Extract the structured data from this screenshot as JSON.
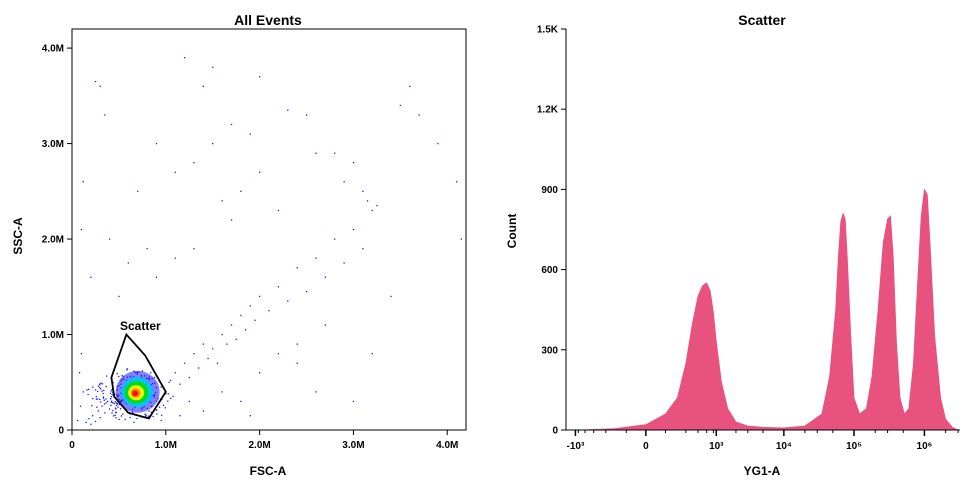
{
  "chart_data": [
    {
      "type": "scatter",
      "title": "All Events",
      "xlabel": "FSC-A",
      "ylabel": "SSC-A",
      "xlim": [
        0,
        4200000
      ],
      "ylim": [
        0,
        4200000
      ],
      "x_ticks": [
        {
          "value": 0,
          "label": "0"
        },
        {
          "value": 1000000,
          "label": "1.0M"
        },
        {
          "value": 2000000,
          "label": "2.0M"
        },
        {
          "value": 3000000,
          "label": "3.0M"
        },
        {
          "value": 4000000,
          "label": "4.0M"
        }
      ],
      "y_ticks": [
        {
          "value": 0,
          "label": "0"
        },
        {
          "value": 1000000,
          "label": "1.0M"
        },
        {
          "value": 2000000,
          "label": "2.0M"
        },
        {
          "value": 3000000,
          "label": "3.0M"
        },
        {
          "value": 4000000,
          "label": "4.0M"
        }
      ],
      "point_color": "#1a1aff",
      "density_center": [
        700000,
        400000
      ],
      "density_colors": [
        "#1a1aff",
        "#00c8ff",
        "#00e000",
        "#ffff00",
        "#ff8000",
        "#ff0000"
      ],
      "points": [
        [
          150000,
          80000
        ],
        [
          180000,
          120000
        ],
        [
          200000,
          60000
        ],
        [
          220000,
          150000
        ],
        [
          250000,
          90000
        ],
        [
          280000,
          200000
        ],
        [
          300000,
          130000
        ],
        [
          320000,
          250000
        ],
        [
          350000,
          180000
        ],
        [
          380000,
          300000
        ],
        [
          400000,
          220000
        ],
        [
          420000,
          350000
        ],
        [
          450000,
          280000
        ],
        [
          480000,
          420000
        ],
        [
          500000,
          320000
        ],
        [
          520000,
          480000
        ],
        [
          550000,
          380000
        ],
        [
          580000,
          520000
        ],
        [
          600000,
          300000
        ],
        [
          620000,
          560000
        ],
        [
          650000,
          450000
        ],
        [
          680000,
          600000
        ],
        [
          700000,
          250000
        ],
        [
          720000,
          500000
        ],
        [
          750000,
          620000
        ],
        [
          780000,
          350000
        ],
        [
          800000,
          480000
        ],
        [
          820000,
          200000
        ],
        [
          850000,
          420000
        ],
        [
          880000,
          550000
        ],
        [
          900000,
          300000
        ],
        [
          950000,
          450000
        ],
        [
          1000000,
          380000
        ],
        [
          1050000,
          520000
        ],
        [
          1100000,
          600000
        ],
        [
          1150000,
          480000
        ],
        [
          1200000,
          700000
        ],
        [
          1250000,
          550000
        ],
        [
          1300000,
          800000
        ],
        [
          1350000,
          650000
        ],
        [
          1400000,
          900000
        ],
        [
          1450000,
          750000
        ],
        [
          1500000,
          850000
        ],
        [
          1550000,
          700000
        ],
        [
          1600000,
          1000000
        ],
        [
          1650000,
          900000
        ],
        [
          1700000,
          1100000
        ],
        [
          1750000,
          950000
        ],
        [
          1800000,
          1200000
        ],
        [
          1850000,
          1050000
        ],
        [
          1900000,
          1300000
        ],
        [
          1950000,
          1150000
        ],
        [
          2000000,
          1400000
        ],
        [
          2100000,
          1250000
        ],
        [
          2200000,
          1500000
        ],
        [
          2300000,
          1350000
        ],
        [
          2400000,
          1700000
        ],
        [
          2500000,
          1450000
        ],
        [
          2600000,
          1800000
        ],
        [
          2700000,
          1600000
        ],
        [
          2800000,
          2000000
        ],
        [
          2900000,
          1750000
        ],
        [
          3000000,
          2100000
        ],
        [
          3100000,
          1900000
        ],
        [
          3200000,
          2300000
        ],
        [
          300000,
          3600000
        ],
        [
          250000,
          3650000
        ],
        [
          350000,
          3300000
        ],
        [
          1200000,
          3900000
        ],
        [
          1500000,
          3800000
        ],
        [
          2000000,
          3700000
        ],
        [
          1400000,
          3600000
        ],
        [
          2500000,
          3300000
        ],
        [
          2300000,
          3350000
        ],
        [
          3700000,
          3300000
        ],
        [
          3600000,
          3600000
        ],
        [
          2600000,
          2900000
        ],
        [
          2000000,
          2700000
        ],
        [
          1800000,
          2500000
        ],
        [
          2200000,
          2300000
        ],
        [
          3150000,
          2400000
        ],
        [
          3250000,
          2350000
        ],
        [
          3900000,
          3000000
        ],
        [
          4100000,
          2600000
        ],
        [
          4150000,
          2000000
        ],
        [
          800000,
          1900000
        ],
        [
          600000,
          1750000
        ],
        [
          400000,
          2000000
        ],
        [
          100000,
          2100000
        ],
        [
          120000,
          2600000
        ],
        [
          200000,
          1600000
        ],
        [
          500000,
          1400000
        ],
        [
          900000,
          1600000
        ],
        [
          1100000,
          1800000
        ],
        [
          1300000,
          1900000
        ],
        [
          1600000,
          2400000
        ],
        [
          1700000,
          2200000
        ],
        [
          2800000,
          2900000
        ],
        [
          3000000,
          2800000
        ],
        [
          3400000,
          1400000
        ],
        [
          2700000,
          1100000
        ],
        [
          2400000,
          900000
        ],
        [
          2200000,
          800000
        ],
        [
          2000000,
          600000
        ],
        [
          1800000,
          300000
        ],
        [
          1600000,
          400000
        ],
        [
          1400000,
          200000
        ],
        [
          1250000,
          300000
        ],
        [
          1150000,
          150000
        ],
        [
          950000,
          100000
        ],
        [
          1900000,
          150000
        ],
        [
          2400000,
          700000
        ],
        [
          2600000,
          400000
        ],
        [
          3000000,
          300000
        ],
        [
          3200000,
          800000
        ],
        [
          100000,
          800000
        ],
        [
          80000,
          600000
        ],
        [
          120000,
          400000
        ],
        [
          90000,
          250000
        ],
        [
          60000,
          100000
        ],
        [
          2900000,
          2600000
        ],
        [
          3100000,
          2500000
        ],
        [
          3500000,
          3400000
        ],
        [
          1500000,
          3000000
        ],
        [
          1900000,
          3100000
        ],
        [
          1300000,
          2800000
        ],
        [
          1100000,
          2700000
        ],
        [
          1700000,
          3200000
        ],
        [
          900000,
          3000000
        ],
        [
          700000,
          2500000
        ]
      ],
      "gate": {
        "label": "Scatter",
        "vertices": [
          [
            420000,
            550000
          ],
          [
            580000,
            1000000
          ],
          [
            780000,
            780000
          ],
          [
            1000000,
            400000
          ],
          [
            820000,
            120000
          ],
          [
            600000,
            180000
          ],
          [
            450000,
            350000
          ]
        ]
      }
    },
    {
      "type": "area",
      "title": "Scatter",
      "xlabel": "YG1-A",
      "ylabel": "Count",
      "ylim": [
        0,
        1500
      ],
      "x_scale": "biexponential",
      "fill_color": "#e8527e",
      "x_ticks": [
        {
          "value": -1000,
          "label": "-10³"
        },
        {
          "value": 0,
          "label": "0"
        },
        {
          "value": 1000,
          "label": "10³"
        },
        {
          "value": 10000,
          "label": "10⁴"
        },
        {
          "value": 100000,
          "label": "10⁵"
        },
        {
          "value": 1000000,
          "label": "10⁶"
        }
      ],
      "y_ticks": [
        {
          "value": 0,
          "label": "0"
        },
        {
          "value": 300,
          "label": "300"
        },
        {
          "value": 600,
          "label": "600"
        },
        {
          "value": 900,
          "label": "900"
        },
        {
          "value": 1200,
          "label": "1.2K"
        },
        {
          "value": 1500,
          "label": "1.5K"
        }
      ],
      "x": [
        -1000,
        -800,
        -500,
        -200,
        0,
        100,
        200,
        300,
        400,
        500,
        600,
        700,
        800,
        900,
        1000,
        1200,
        1500,
        2000,
        3000,
        5000,
        10000,
        20000,
        35000,
        45000,
        55000,
        60000,
        65000,
        70000,
        75000,
        80000,
        90000,
        100000,
        120000,
        150000,
        180000,
        220000,
        260000,
        300000,
        330000,
        360000,
        400000,
        450000,
        520000,
        600000,
        700000,
        800000,
        900000,
        1000000,
        1100000,
        1200000,
        1400000,
        1700000,
        2000000,
        2500000,
        3000000
      ],
      "y": [
        0,
        0,
        2,
        5,
        20,
        60,
        120,
        250,
        400,
        500,
        540,
        550,
        520,
        440,
        330,
        180,
        80,
        30,
        15,
        10,
        8,
        15,
        60,
        200,
        450,
        650,
        780,
        810,
        790,
        650,
        350,
        120,
        60,
        80,
        200,
        450,
        700,
        790,
        800,
        650,
        330,
        120,
        60,
        80,
        250,
        550,
        800,
        900,
        880,
        700,
        350,
        120,
        40,
        10,
        0
      ]
    }
  ]
}
